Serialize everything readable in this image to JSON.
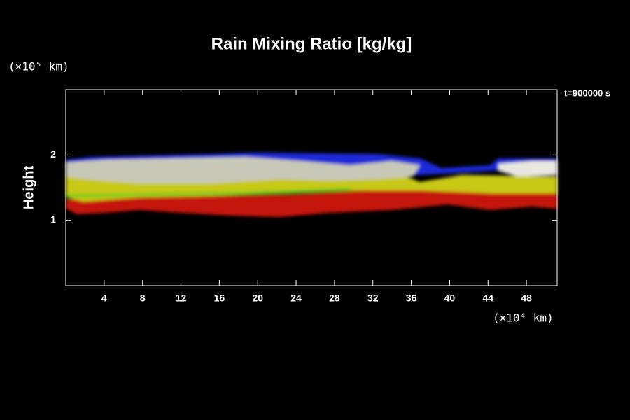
{
  "chart_data": {
    "type": "field",
    "title": "Rain Mixing Ratio [kg/kg]",
    "y_label": "Height",
    "y_unit": "(×10⁵ km)",
    "x_unit": "(×10⁴ km)",
    "annotation": "t=900000 s",
    "xlim": [
      0,
      51.2
    ],
    "xticks": [
      4,
      8,
      12,
      16,
      20,
      24,
      28,
      32,
      36,
      40,
      44,
      48
    ],
    "ylim": [
      0,
      3
    ],
    "yticks": [
      1,
      2
    ]
  }
}
